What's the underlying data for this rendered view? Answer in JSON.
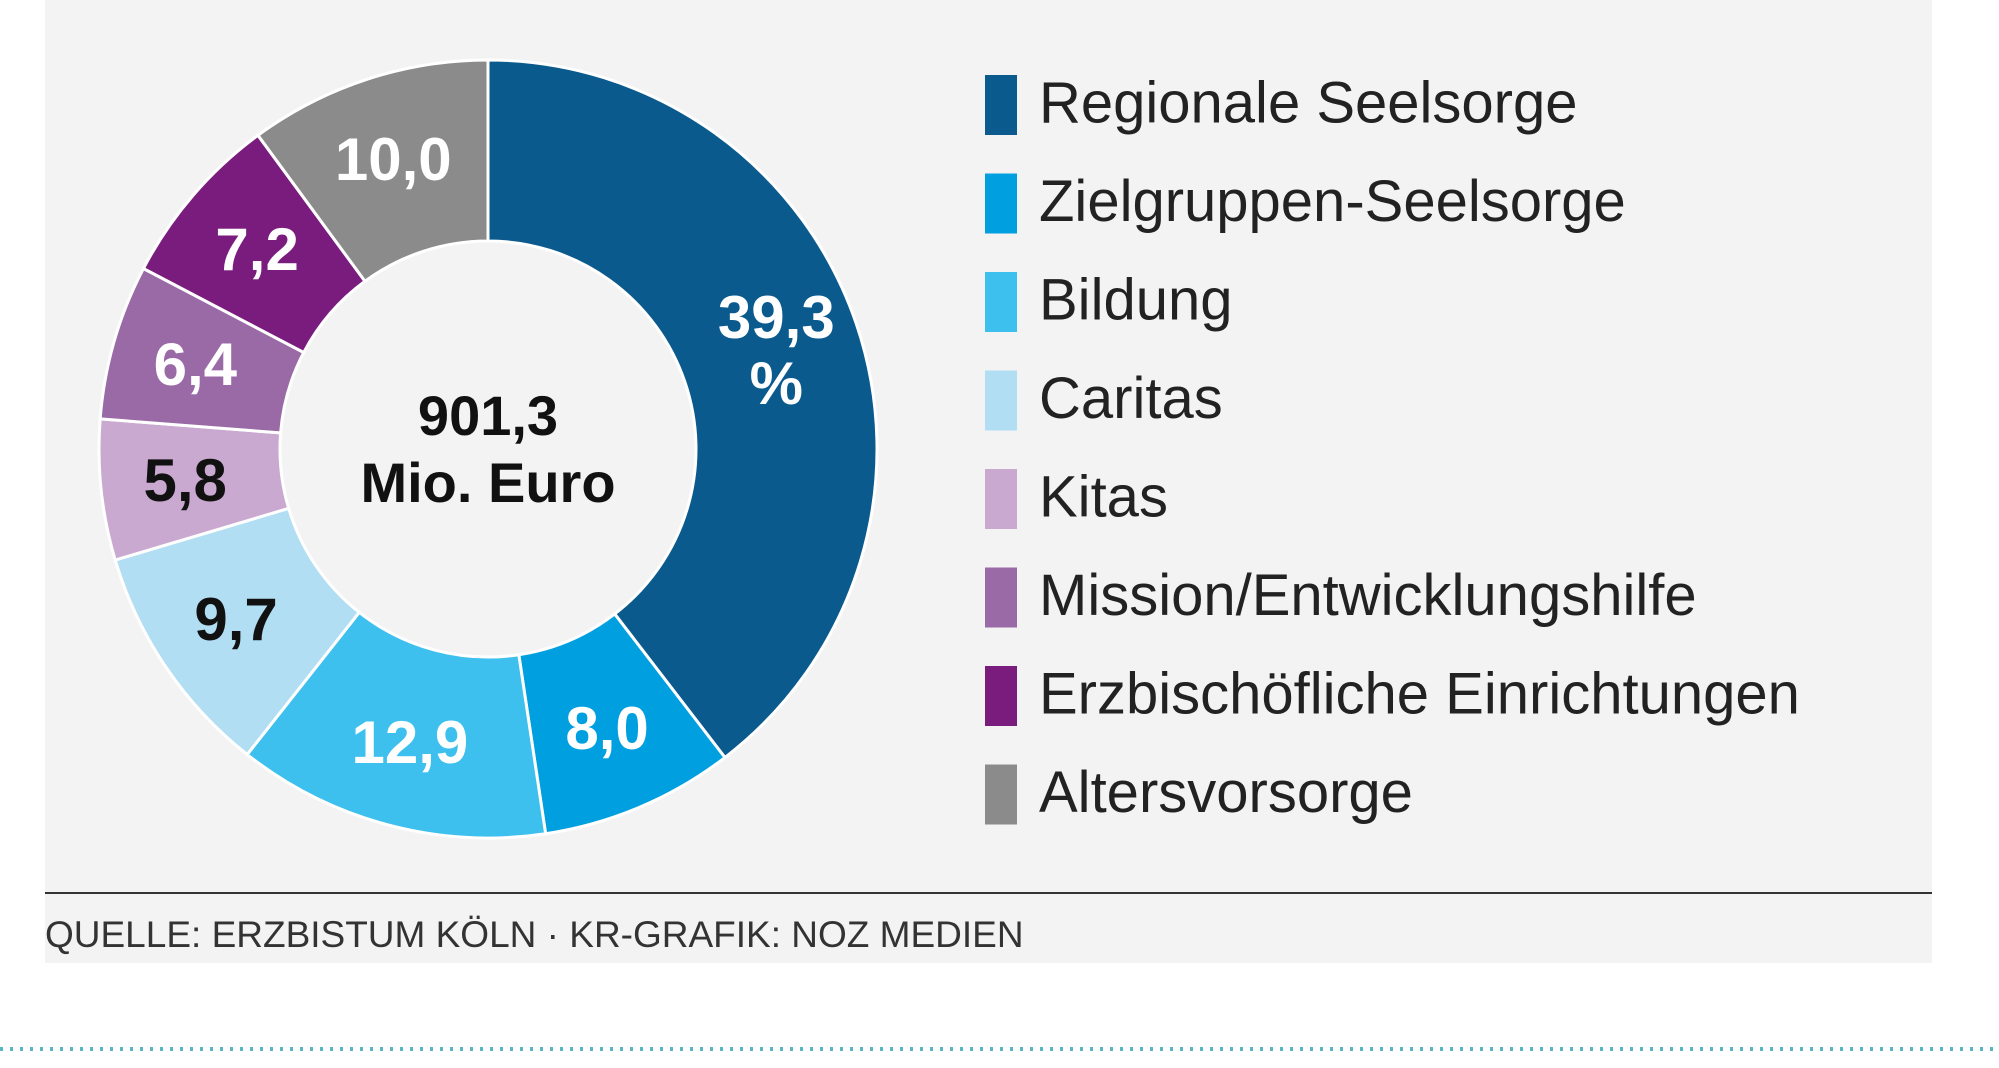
{
  "chart_data": {
    "type": "pie",
    "categories": [
      "Regionale Seelsorge",
      "Zielgruppen-Seelsorge",
      "Bildung",
      "Caritas",
      "Kitas",
      "Mission/Entwicklungshilfe",
      "Erzbischöfliche Einrichtungen",
      "Altersvorsorge"
    ],
    "values": [
      39.3,
      8.0,
      12.9,
      9.7,
      5.8,
      6.4,
      7.2,
      10.0
    ],
    "value_labels": [
      "39,3 %",
      "8,0",
      "12,9",
      "9,7",
      "5,8",
      "6,4",
      "7,2",
      "10,0"
    ],
    "colors": [
      "#0b5a8e",
      "#009fe0",
      "#3ec0ef",
      "#b2def4",
      "#c9a9d0",
      "#9a6aa6",
      "#7a1b7e",
      "#8b8b8b"
    ],
    "center_label": "901,3 Mio. Euro",
    "source": "QUELLE: ERZBISTUM KÖLN · KR-GRAFIK: NOZ MEDIEN"
  }
}
